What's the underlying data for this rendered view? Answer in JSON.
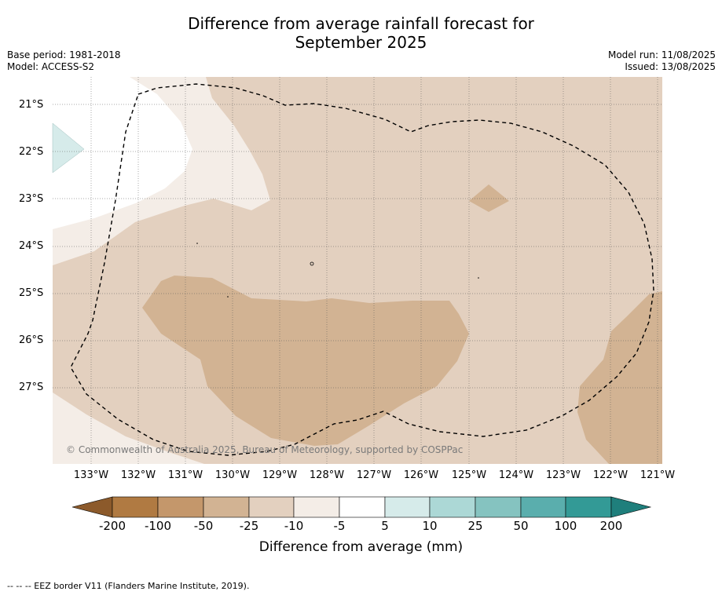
{
  "title": {
    "line1": "Difference from average rainfall forecast for",
    "line2": "September 2025"
  },
  "meta": {
    "base_period": "Base period: 1981-2018",
    "model": "Model: ACCESS-S2",
    "model_run": "Model run: 11/08/2025",
    "issued": "Issued: 13/08/2025"
  },
  "map": {
    "latitude_labels": [
      "21°S",
      "22°S",
      "23°S",
      "24°S",
      "25°S",
      "26°S",
      "27°S"
    ],
    "longitude_labels": [
      "133°W",
      "132°W",
      "131°W",
      "130°W",
      "129°W",
      "128°W",
      "127°W",
      "126°W",
      "125°W",
      "124°W",
      "123°W",
      "122°W",
      "121°W"
    ],
    "copyright": "© Commonwealth of Australia 2025, Bureau of Meteorology, supported by COSPPac",
    "border_style": "dashed black line"
  },
  "colorbar": {
    "title": "Difference from average (mm)",
    "tick_labels": [
      "-200",
      "-100",
      "-50",
      "-25",
      "-10",
      "-5",
      "5",
      "10",
      "25",
      "50",
      "100",
      "200"
    ],
    "colors": [
      "#8c5a2b",
      "#b07a42",
      "#c4976b",
      "#d2b393",
      "#e3d0bf",
      "#f4ede7",
      "#ffffff",
      "#d6ebea",
      "#acd8d6",
      "#85c3c0",
      "#5aaead",
      "#339a96",
      "#1f7f7c"
    ]
  },
  "footnote": "--  --  -- EEZ border V11 (Flanders Marine Institute, 2019)."
}
